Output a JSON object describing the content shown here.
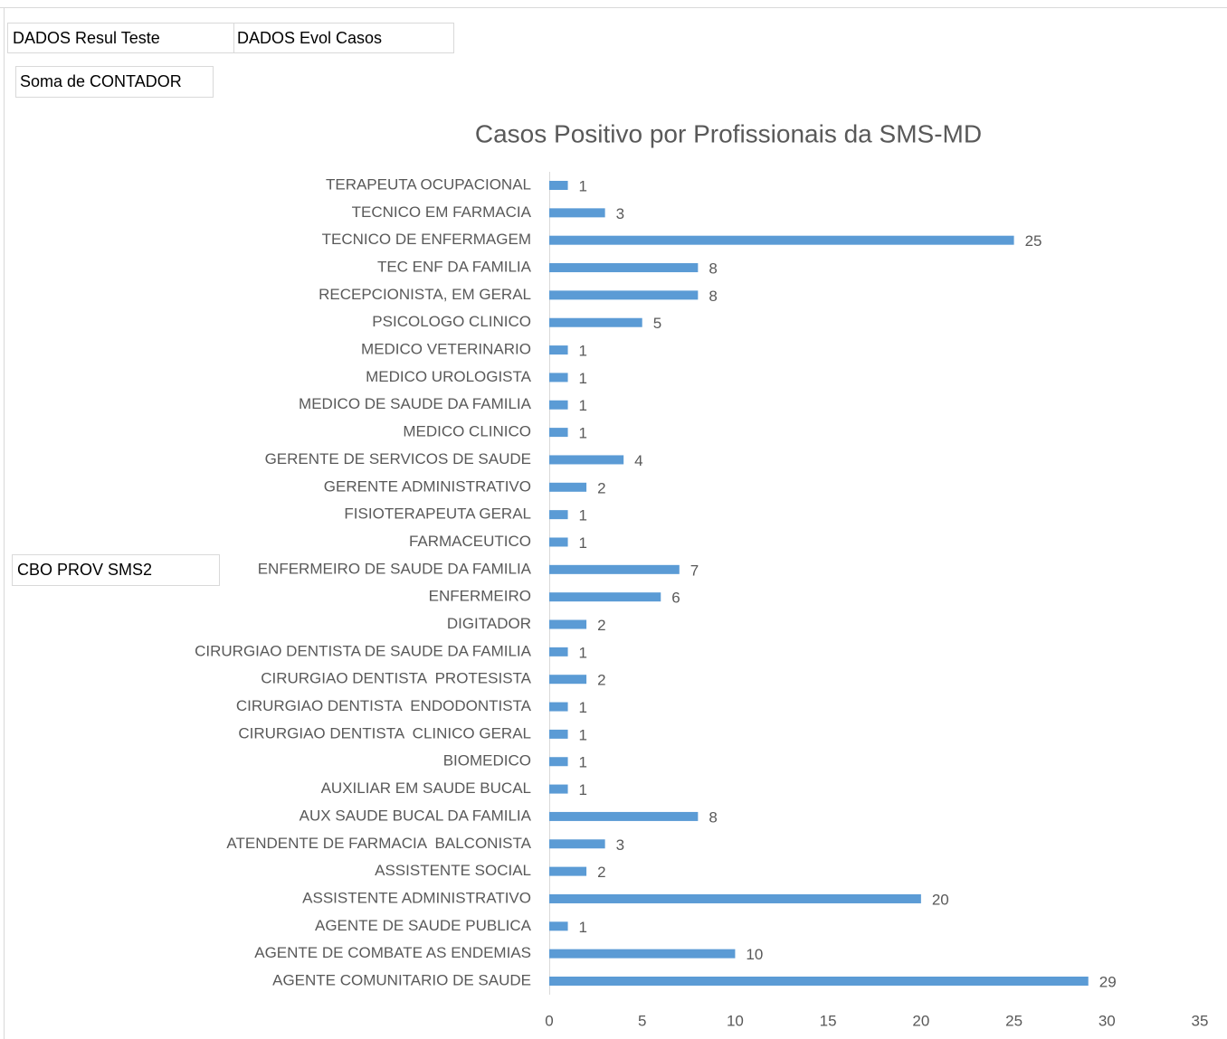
{
  "filter_buttons": [
    "DADOS Resul Teste",
    "DADOS Evol Casos"
  ],
  "value_button": "Soma de CONTADOR",
  "row_button": "CBO PROV SMS2",
  "chart_data": {
    "type": "barh",
    "title": "Casos Positivo por Profissionais da SMS-MD",
    "color": "#5b9bd5",
    "grid": false,
    "categories": [
      "AGENTE COMUNITARIO DE SAUDE",
      "AGENTE DE COMBATE AS ENDEMIAS",
      "AGENTE DE SAUDE PUBLICA",
      "ASSISTENTE ADMINISTRATIVO",
      "ASSISTENTE SOCIAL",
      "ATENDENTE DE FARMACIA  BALCONISTA",
      "AUX SAUDE BUCAL DA FAMILIA",
      "AUXILIAR EM SAUDE BUCAL",
      "BIOMEDICO",
      "CIRURGIAO DENTISTA  CLINICO GERAL",
      "CIRURGIAO DENTISTA  ENDODONTISTA",
      "CIRURGIAO DENTISTA  PROTESISTA",
      "CIRURGIAO DENTISTA DE SAUDE DA FAMILIA",
      "DIGITADOR",
      "ENFERMEIRO",
      "ENFERMEIRO DE SAUDE DA FAMILIA",
      "FARMACEUTICO",
      "FISIOTERAPEUTA GERAL",
      "GERENTE ADMINISTRATIVO",
      "GERENTE DE SERVICOS DE SAUDE",
      "MEDICO CLINICO",
      "MEDICO DE SAUDE DA FAMILIA",
      "MEDICO UROLOGISTA",
      "MEDICO VETERINARIO",
      "PSICOLOGO CLINICO",
      "RECEPCIONISTA, EM GERAL",
      "TEC ENF DA FAMILIA",
      "TECNICO DE ENFERMAGEM",
      "TECNICO EM FARMACIA",
      "TERAPEUTA OCUPACIONAL"
    ],
    "values": [
      29,
      10,
      1,
      20,
      2,
      3,
      8,
      1,
      1,
      1,
      1,
      2,
      1,
      2,
      6,
      7,
      1,
      1,
      2,
      4,
      1,
      1,
      1,
      1,
      5,
      8,
      8,
      25,
      3,
      1
    ],
    "xlim": [
      0,
      35
    ],
    "xticks": [
      0,
      5,
      10,
      15,
      20,
      25,
      30,
      35
    ]
  }
}
